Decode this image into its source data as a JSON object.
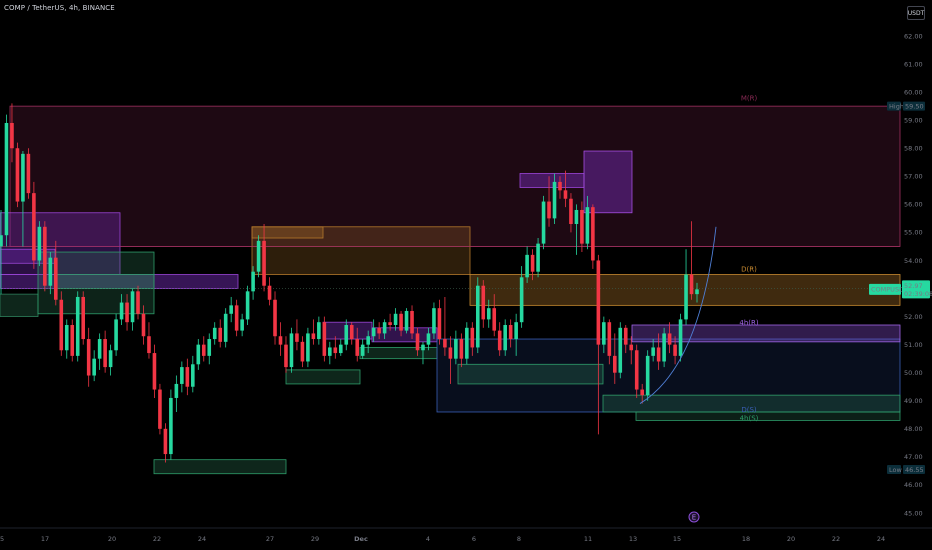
{
  "header": {
    "title": "COMP / TetherUS, 4h, BINANCE"
  },
  "currency_label": "USDT",
  "price_tags": {
    "high_label": "High",
    "high_value": "59.50",
    "low_label": "Low",
    "low_value": "46.55",
    "symbol_label": "COMPUSDT",
    "last_value": "52.97",
    "countdown": "02:39:08"
  },
  "zone_labels": {
    "monthly": "M(R)",
    "daily": "D(R)",
    "h4_resistance": "4h(R)",
    "daily_support": "D(S)",
    "h4_support": "4h(S)"
  },
  "event_marker": "E",
  "colors": {
    "bull": "#26d9a0",
    "bear": "#f23645",
    "monthly_zone": "#8a2a55",
    "daily_res": "#b5782b",
    "h4_res": "#8c4fd9",
    "support_blue": "#2f4fa0",
    "support_green": "#2e7d5a",
    "price_tag": "#26d9a0"
  },
  "chart_data": {
    "type": "candlestick",
    "symbol": "COMP / TetherUS",
    "interval": "4h",
    "exchange": "BINANCE",
    "ylim": [
      44.6,
      63.0
    ],
    "y_ticks": [
      45.0,
      46.0,
      47.0,
      48.0,
      49.0,
      50.0,
      51.0,
      52.0,
      53.0,
      54.0,
      55.0,
      56.0,
      57.0,
      58.0,
      59.0,
      60.0,
      61.0,
      62.0
    ],
    "x_ticks": [
      "5",
      "17",
      "20",
      "22",
      "24",
      "27",
      "29",
      "Dec",
      "4",
      "6",
      "8",
      "11",
      "13",
      "15",
      "18",
      "20",
      "22",
      "24"
    ],
    "grid": false,
    "last_price": 52.97,
    "session_high": 59.5,
    "session_low": 46.55,
    "candles": [
      [
        54.5,
        55.8,
        52.8,
        54.9
      ],
      [
        54.9,
        59.2,
        54.5,
        58.9
      ],
      [
        58.9,
        59.6,
        57.5,
        58.0
      ],
      [
        58.0,
        58.2,
        55.9,
        56.1
      ],
      [
        56.1,
        57.9,
        54.5,
        57.8
      ],
      [
        57.8,
        58.0,
        56.2,
        56.4
      ],
      [
        56.4,
        56.8,
        53.7,
        54.0
      ],
      [
        54.0,
        55.4,
        53.8,
        55.2
      ],
      [
        55.2,
        55.4,
        52.9,
        53.1
      ],
      [
        53.1,
        54.3,
        52.8,
        54.1
      ],
      [
        54.1,
        54.7,
        52.4,
        52.6
      ],
      [
        52.6,
        52.9,
        50.6,
        50.8
      ],
      [
        50.8,
        51.9,
        50.5,
        51.7
      ],
      [
        51.7,
        51.9,
        50.4,
        50.6
      ],
      [
        50.6,
        52.9,
        50.4,
        52.7
      ],
      [
        52.7,
        52.9,
        51.0,
        51.2
      ],
      [
        51.2,
        51.6,
        49.5,
        49.9
      ],
      [
        49.9,
        50.8,
        49.7,
        50.5
      ],
      [
        50.5,
        51.4,
        50.1,
        51.2
      ],
      [
        51.2,
        51.5,
        50.0,
        50.2
      ],
      [
        50.2,
        51.0,
        49.9,
        50.8
      ],
      [
        50.8,
        52.1,
        50.6,
        51.9
      ],
      [
        51.9,
        52.8,
        51.7,
        52.5
      ],
      [
        52.5,
        52.8,
        51.5,
        51.8
      ],
      [
        51.8,
        53.0,
        51.5,
        52.9
      ],
      [
        52.9,
        53.1,
        51.9,
        52.1
      ],
      [
        52.1,
        52.4,
        51.0,
        51.3
      ],
      [
        51.3,
        51.8,
        50.5,
        50.7
      ],
      [
        50.7,
        51.0,
        49.1,
        49.4
      ],
      [
        49.4,
        49.6,
        47.8,
        48.0
      ],
      [
        48.0,
        48.2,
        46.8,
        47.1
      ],
      [
        47.1,
        49.4,
        46.9,
        49.1
      ],
      [
        49.1,
        49.9,
        48.6,
        49.6
      ],
      [
        49.6,
        50.4,
        49.3,
        50.2
      ],
      [
        50.2,
        50.5,
        49.2,
        49.5
      ],
      [
        49.5,
        50.6,
        49.3,
        50.3
      ],
      [
        50.3,
        51.2,
        50.1,
        51.0
      ],
      [
        51.0,
        51.3,
        50.4,
        50.6
      ],
      [
        50.6,
        51.4,
        50.3,
        51.2
      ],
      [
        51.2,
        51.8,
        51.0,
        51.6
      ],
      [
        51.6,
        51.9,
        50.9,
        51.1
      ],
      [
        51.1,
        52.3,
        50.9,
        52.1
      ],
      [
        52.1,
        52.7,
        51.8,
        52.4
      ],
      [
        52.4,
        52.6,
        51.3,
        51.5
      ],
      [
        51.5,
        52.1,
        51.3,
        51.9
      ],
      [
        51.9,
        53.1,
        51.7,
        52.9
      ],
      [
        52.9,
        53.8,
        52.6,
        53.6
      ],
      [
        53.6,
        54.9,
        53.4,
        54.7
      ],
      [
        54.7,
        55.3,
        52.9,
        53.1
      ],
      [
        53.1,
        53.4,
        52.4,
        52.6
      ],
      [
        52.6,
        52.9,
        51.0,
        51.3
      ],
      [
        51.3,
        51.8,
        50.6,
        51.0
      ],
      [
        51.0,
        51.3,
        50.0,
        50.2
      ],
      [
        50.2,
        51.6,
        50.0,
        51.4
      ],
      [
        51.4,
        51.9,
        50.8,
        51.1
      ],
      [
        51.1,
        51.3,
        50.2,
        50.4
      ],
      [
        50.4,
        51.6,
        50.2,
        51.4
      ],
      [
        51.4,
        51.9,
        51.0,
        51.2
      ],
      [
        51.2,
        52.0,
        51.0,
        51.8
      ],
      [
        51.8,
        52.0,
        50.4,
        50.6
      ],
      [
        50.6,
        51.1,
        50.3,
        50.9
      ],
      [
        50.9,
        51.3,
        50.5,
        50.7
      ],
      [
        50.7,
        51.2,
        50.6,
        51.0
      ],
      [
        51.0,
        51.9,
        50.8,
        51.7
      ],
      [
        51.7,
        51.8,
        51.0,
        51.2
      ],
      [
        51.2,
        51.6,
        50.4,
        50.6
      ],
      [
        50.6,
        51.2,
        50.5,
        51.0
      ],
      [
        51.0,
        51.5,
        50.7,
        51.3
      ],
      [
        51.3,
        51.9,
        51.1,
        51.6
      ],
      [
        51.6,
        51.8,
        51.2,
        51.4
      ],
      [
        51.4,
        51.9,
        51.2,
        51.8
      ],
      [
        51.8,
        52.1,
        51.5,
        51.7
      ],
      [
        51.7,
        52.3,
        51.5,
        52.1
      ],
      [
        52.1,
        52.2,
        51.3,
        51.5
      ],
      [
        51.5,
        52.3,
        51.4,
        52.2
      ],
      [
        52.2,
        52.4,
        51.2,
        51.4
      ],
      [
        51.4,
        51.6,
        50.6,
        50.8
      ],
      [
        50.8,
        51.1,
        50.3,
        51.0
      ],
      [
        51.0,
        51.6,
        50.8,
        51.4
      ],
      [
        51.4,
        52.5,
        51.2,
        52.3
      ],
      [
        52.3,
        52.6,
        51.0,
        51.2
      ],
      [
        51.2,
        52.7,
        50.6,
        50.9
      ],
      [
        50.9,
        51.3,
        49.6,
        50.5
      ],
      [
        50.5,
        51.5,
        50.3,
        51.2
      ],
      [
        51.2,
        51.4,
        50.2,
        50.5
      ],
      [
        50.5,
        51.8,
        50.3,
        51.6
      ],
      [
        51.6,
        51.8,
        50.6,
        50.9
      ],
      [
        50.9,
        53.4,
        50.7,
        53.1
      ],
      [
        53.1,
        53.3,
        51.6,
        51.9
      ],
      [
        51.9,
        52.6,
        51.6,
        52.3
      ],
      [
        52.3,
        52.8,
        51.3,
        51.5
      ],
      [
        51.5,
        51.8,
        50.6,
        50.8
      ],
      [
        50.8,
        51.9,
        50.6,
        51.7
      ],
      [
        51.7,
        51.9,
        50.9,
        51.2
      ],
      [
        51.2,
        52.1,
        50.6,
        51.8
      ],
      [
        51.8,
        53.8,
        51.6,
        53.4
      ],
      [
        53.4,
        54.5,
        53.2,
        54.2
      ],
      [
        54.2,
        54.4,
        53.3,
        53.6
      ],
      [
        53.6,
        54.8,
        53.4,
        54.6
      ],
      [
        54.6,
        56.3,
        54.4,
        56.1
      ],
      [
        56.1,
        57.0,
        55.2,
        55.5
      ],
      [
        55.5,
        57.1,
        55.3,
        56.8
      ],
      [
        56.8,
        57.0,
        56.2,
        56.5
      ],
      [
        56.5,
        57.2,
        55.9,
        56.2
      ],
      [
        56.2,
        56.4,
        55.0,
        55.3
      ],
      [
        55.3,
        56.0,
        54.2,
        55.8
      ],
      [
        55.8,
        56.1,
        54.3,
        54.6
      ],
      [
        54.6,
        56.3,
        54.4,
        55.9
      ],
      [
        55.9,
        56.0,
        53.7,
        54.0
      ],
      [
        54.0,
        54.2,
        47.8,
        51.0
      ],
      [
        51.0,
        52.0,
        50.7,
        51.8
      ],
      [
        51.8,
        51.9,
        50.3,
        50.6
      ],
      [
        50.6,
        51.4,
        49.6,
        50.0
      ],
      [
        50.0,
        51.8,
        49.8,
        51.6
      ],
      [
        51.6,
        51.7,
        50.7,
        51.0
      ],
      [
        51.0,
        51.3,
        50.3,
        50.8
      ],
      [
        50.8,
        51.0,
        49.1,
        49.4
      ],
      [
        49.4,
        49.6,
        48.9,
        49.2
      ],
      [
        49.2,
        50.8,
        49.0,
        50.6
      ],
      [
        50.6,
        51.2,
        50.4,
        50.9
      ],
      [
        50.9,
        51.4,
        50.1,
        50.4
      ],
      [
        50.4,
        51.6,
        50.2,
        51.4
      ],
      [
        51.4,
        51.8,
        50.7,
        51.0
      ],
      [
        51.0,
        51.3,
        50.3,
        50.6
      ],
      [
        50.6,
        52.1,
        50.4,
        51.9
      ],
      [
        51.9,
        54.4,
        51.7,
        53.5
      ],
      [
        53.5,
        55.4,
        52.6,
        52.8
      ],
      [
        52.8,
        53.2,
        52.5,
        52.97
      ]
    ]
  }
}
